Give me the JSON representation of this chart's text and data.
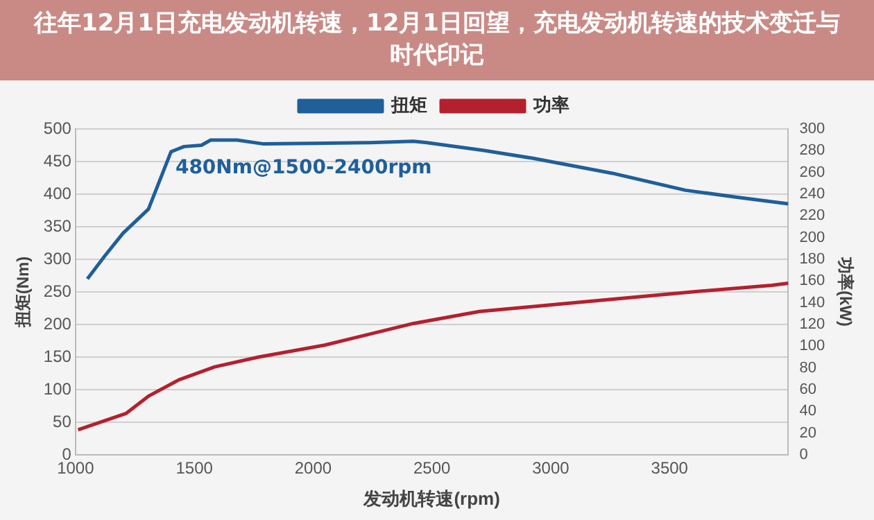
{
  "chart_data": {
    "type": "line",
    "title": "往年12月1日充电发动机转速，12月1日回望，充电发动机转速的技术变迁与时代印记",
    "xlabel": "发动机转速(rpm)",
    "ylabel": "扭矩(Nm)",
    "y2label": "功率(kW)",
    "xlim": [
      1000,
      4000
    ],
    "xticks": [
      1000,
      1500,
      2000,
      2500,
      3000,
      3500
    ],
    "ylim": [
      0,
      500
    ],
    "yticks": [
      0,
      50,
      100,
      150,
      200,
      250,
      300,
      350,
      400,
      450,
      500
    ],
    "y2lim": [
      0,
      300
    ],
    "y2ticks": [
      0,
      20,
      40,
      60,
      80,
      100,
      120,
      140,
      160,
      180,
      200,
      220,
      240,
      260,
      280,
      300
    ],
    "grid": "y",
    "legend": "top",
    "marker": "none",
    "line_style": "solid",
    "annotations": [
      "480Nm@1500-2400rpm"
    ],
    "series": [
      {
        "name": "扭矩",
        "color": "#1f5f9a",
        "x": [
          1050,
          1123,
          1200,
          1307,
          1402,
          1457,
          1530,
          1569,
          1680,
          1792,
          2000,
          2239,
          2423,
          2479,
          2719,
          2925,
          3260,
          3567,
          3790,
          4000
        ],
        "values": [
          270,
          305,
          340,
          377,
          465,
          473,
          475,
          483,
          483,
          477,
          478,
          479,
          481,
          479,
          467,
          455,
          432,
          406,
          395,
          385
        ]
      },
      {
        "name": "功率",
        "color": "#b5202e",
        "axis": "y2",
        "x": [
          1011,
          1212,
          1307,
          1435,
          1586,
          1770,
          2049,
          2423,
          2700,
          3000,
          3595,
          3930,
          4000
        ],
        "values": [
          23,
          38,
          54,
          69,
          81,
          90,
          101,
          121,
          132,
          138,
          150,
          156,
          158
        ]
      }
    ]
  }
}
